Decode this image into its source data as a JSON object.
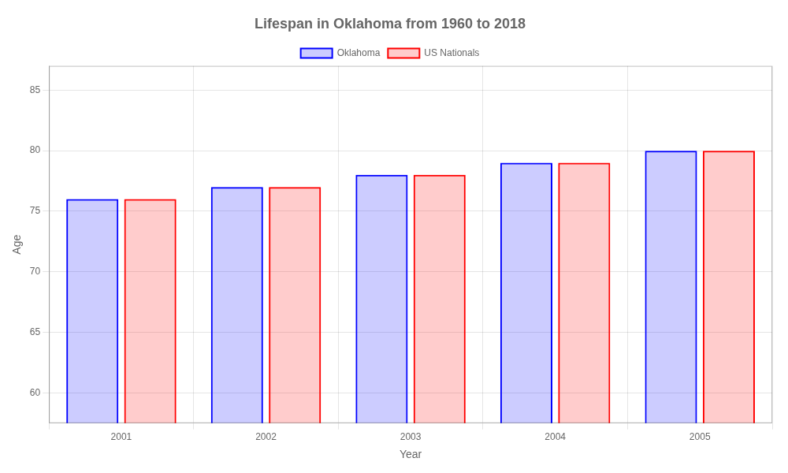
{
  "chart_data": {
    "type": "bar",
    "title": "Lifespan in Oklahoma from 1960 to 2018",
    "x_label": "Year",
    "y_label": "Age",
    "categories": [
      "2001",
      "2002",
      "2003",
      "2004",
      "2005"
    ],
    "series": [
      {
        "name": "Oklahoma",
        "color": "#0000ff",
        "values": [
          76,
          77,
          78,
          79,
          80
        ]
      },
      {
        "name": "US Nationals",
        "color": "#ff0000",
        "values": [
          76,
          77,
          78,
          79,
          80
        ]
      }
    ],
    "ylim": [
      57.5,
      87
    ],
    "yticks": [
      60,
      65,
      70,
      75,
      80,
      85
    ],
    "grid": true,
    "legend": "top"
  }
}
